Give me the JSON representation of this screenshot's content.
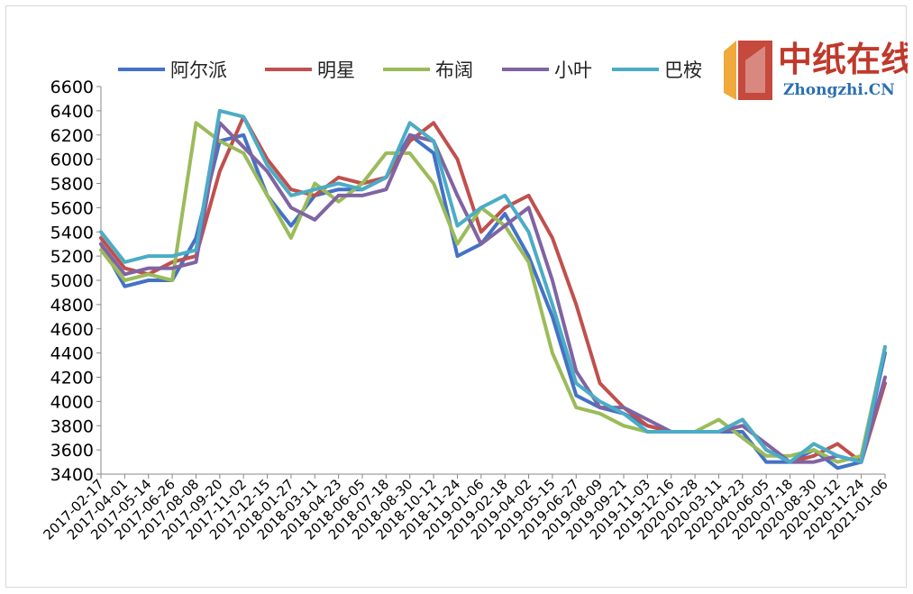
{
  "watermark": {
    "cn": "中纸在线",
    "en": "Zhongzhi.CN"
  },
  "chart_data": {
    "type": "line",
    "title": "",
    "xlabel": "",
    "ylabel": "",
    "ylim": [
      3400,
      6600
    ],
    "yticks": [
      3400,
      3600,
      3800,
      4000,
      4200,
      4400,
      4600,
      4800,
      5000,
      5200,
      5400,
      5600,
      5800,
      6000,
      6200,
      6400,
      6600
    ],
    "categories": [
      "2017-02-17",
      "2017-04-01",
      "2017-05-14",
      "2017-06-26",
      "2017-08-08",
      "2017-09-20",
      "2017-11-02",
      "2017-12-15",
      "2018-01-27",
      "2018-03-11",
      "2018-04-23",
      "2018-06-05",
      "2018-07-18",
      "2018-08-30",
      "2018-10-12",
      "2018-11-24",
      "2019-01-06",
      "2019-02-18",
      "2019-04-02",
      "2019-05-15",
      "2019-06-27",
      "2019-08-09",
      "2019-09-21",
      "2019-11-03",
      "2019-12-16",
      "2020-01-28",
      "2020-03-11",
      "2020-04-23",
      "2020-06-05",
      "2020-07-18",
      "2020-08-30",
      "2020-10-12",
      "2020-11-24",
      "2021-01-06"
    ],
    "legend_position": "top",
    "grid": false,
    "series": [
      {
        "name": "阿尔派",
        "color": "#4472C4",
        "values": [
          5300,
          4950,
          5000,
          5000,
          5350,
          6150,
          6200,
          5700,
          5450,
          5700,
          5750,
          5750,
          5850,
          6200,
          6050,
          5200,
          5300,
          5550,
          5200,
          4700,
          4050,
          3950,
          3900,
          3800,
          3750,
          3750,
          3750,
          3750,
          3500,
          3500,
          3600,
          3450,
          3500,
          4400
        ]
      },
      {
        "name": "明星",
        "color": "#C0504D",
        "values": [
          5350,
          5100,
          5050,
          5150,
          5200,
          5900,
          6350,
          6000,
          5750,
          5700,
          5850,
          5800,
          5850,
          6150,
          6300,
          6000,
          5400,
          5600,
          5700,
          5350,
          4800,
          4150,
          3950,
          3800,
          3750,
          3750,
          3750,
          3850,
          3600,
          3500,
          3550,
          3650,
          3500,
          4150
        ]
      },
      {
        "name": "布阔",
        "color": "#9BBB59",
        "values": [
          5250,
          5000,
          5050,
          5000,
          6300,
          6150,
          6050,
          5700,
          5350,
          5800,
          5650,
          5800,
          6050,
          6050,
          5800,
          5300,
          5600,
          5450,
          5150,
          4400,
          3950,
          3900,
          3800,
          3750,
          3750,
          3750,
          3850,
          3700,
          3550,
          3550,
          3600,
          3500,
          3550,
          4450
        ]
      },
      {
        "name": "小叶",
        "color": "#8064A2",
        "values": [
          5300,
          5050,
          5100,
          5100,
          5150,
          6300,
          6100,
          5900,
          5600,
          5500,
          5700,
          5700,
          5750,
          6200,
          6150,
          5700,
          5300,
          5450,
          5600,
          5000,
          4250,
          3950,
          3950,
          3850,
          3750,
          3750,
          3750,
          3800,
          3650,
          3500,
          3500,
          3550,
          3500,
          4200
        ]
      },
      {
        "name": "巴桉",
        "color": "#4BACC6",
        "values": [
          5400,
          5150,
          5200,
          5200,
          5250,
          6400,
          6350,
          5950,
          5700,
          5750,
          5800,
          5750,
          5850,
          6300,
          6150,
          5450,
          5600,
          5700,
          5400,
          4800,
          4150,
          4000,
          3900,
          3750,
          3750,
          3750,
          3750,
          3850,
          3600,
          3500,
          3650,
          3550,
          3500,
          4450
        ]
      }
    ]
  }
}
